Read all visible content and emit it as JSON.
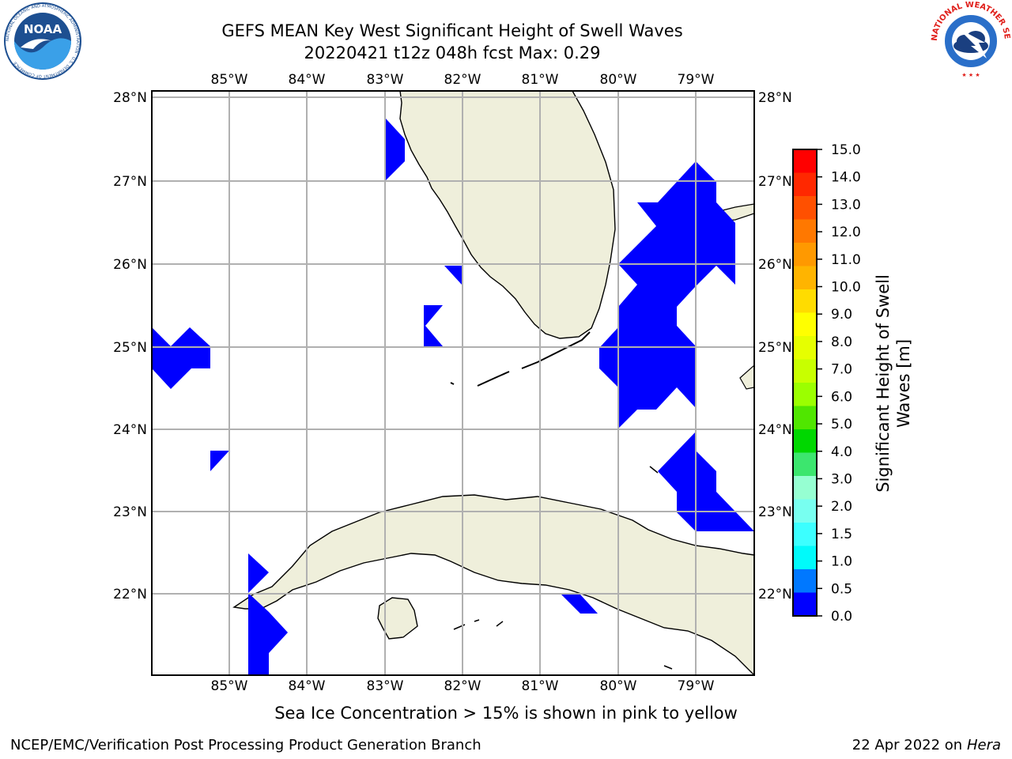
{
  "title": {
    "line1": "GEFS MEAN Key West Significant Height of Swell Waves",
    "line2": "20220421 t12z 048h fcst    Max: 0.29"
  },
  "logos": {
    "left": {
      "name": "noaa-logo",
      "text": "NOAA",
      "ring_text": "NATIONAL OCEANIC AND ATMOSPHERIC ADMINISTRATION · U.S. DEPARTMENT OF COMMERCE",
      "color": "#1d4f91"
    },
    "right": {
      "name": "nws-logo",
      "ring_text": "NATIONAL WEATHER SERVICE",
      "color": "#e0201b"
    }
  },
  "map": {
    "lon_labels": [
      "85°W",
      "84°W",
      "83°W",
      "82°W",
      "81°W",
      "80°W",
      "79°W"
    ],
    "lat_labels": [
      "28°N",
      "27°N",
      "26°N",
      "25°N",
      "24°N",
      "23°N",
      "22°N"
    ],
    "extent": {
      "lon_min": -86.0,
      "lon_max": -78.25,
      "lat_min": 21.0,
      "lat_max": 28.1
    },
    "land_color": "#efefdb",
    "grid_color": "#b0b0b0",
    "swell_color": "#0000ff"
  },
  "colorbar": {
    "label": "Significant Height of Swell Waves [m]",
    "label_line1": "Significant Height of Swell",
    "label_line2": "Waves [m]",
    "ticks": [
      "15.0",
      "14.0",
      "13.0",
      "12.0",
      "11.0",
      "10.0",
      "9.0",
      "8.0",
      "7.0",
      "6.0",
      "5.0",
      "4.0",
      "3.0",
      "2.0",
      "1.5",
      "1.0",
      "0.5",
      "0.0"
    ],
    "colors": [
      "#ff0000",
      "#ff2800",
      "#ff5000",
      "#ff7800",
      "#ff9900",
      "#ffb400",
      "#ffdc00",
      "#ffff00",
      "#e6ff00",
      "#c8ff00",
      "#9bff00",
      "#50e600",
      "#00d700",
      "#3ce66e",
      "#96ffd2",
      "#78fff0",
      "#3cffff",
      "#00fafa",
      "#0078ff",
      "#0000ff"
    ]
  },
  "footer": {
    "note": "Sea Ice Concentration > 15% is shown in pink to yellow",
    "left": "NCEP/EMC/Verification Post Processing Product Generation Branch",
    "right_date": "22 Apr 2022 on ",
    "right_host": "Hera"
  }
}
